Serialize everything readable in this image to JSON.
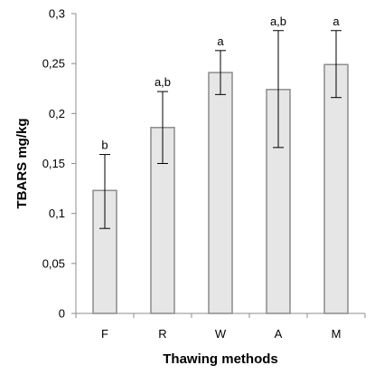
{
  "chart_data": {
    "type": "bar",
    "title": "",
    "xlabel": "Thawing methods",
    "ylabel": "TBARS mg/kg",
    "categories": [
      "F",
      "R",
      "W",
      "A",
      "M"
    ],
    "values": [
      0.123,
      0.186,
      0.241,
      0.224,
      0.249
    ],
    "error_upper": [
      0.159,
      0.222,
      0.263,
      0.283,
      0.283
    ],
    "error_lower": [
      0.085,
      0.15,
      0.219,
      0.166,
      0.216
    ],
    "significance_labels": [
      "b",
      "a,b",
      "a",
      "a,b",
      "a"
    ],
    "ylim": [
      0,
      0.3
    ],
    "yticks": [
      0,
      0.05,
      0.1,
      0.15,
      0.2,
      0.25,
      0.3
    ],
    "ytick_labels": [
      "0",
      "0,05",
      "0,1",
      "0,15",
      "0,2",
      "0,25",
      "0,3"
    ],
    "grid": false,
    "legend": "none",
    "colors": {
      "bar_fill": "#e6e6e6",
      "bar_stroke": "#8c8c8c",
      "axis": "#8c8c8c",
      "error": "#000000"
    }
  }
}
